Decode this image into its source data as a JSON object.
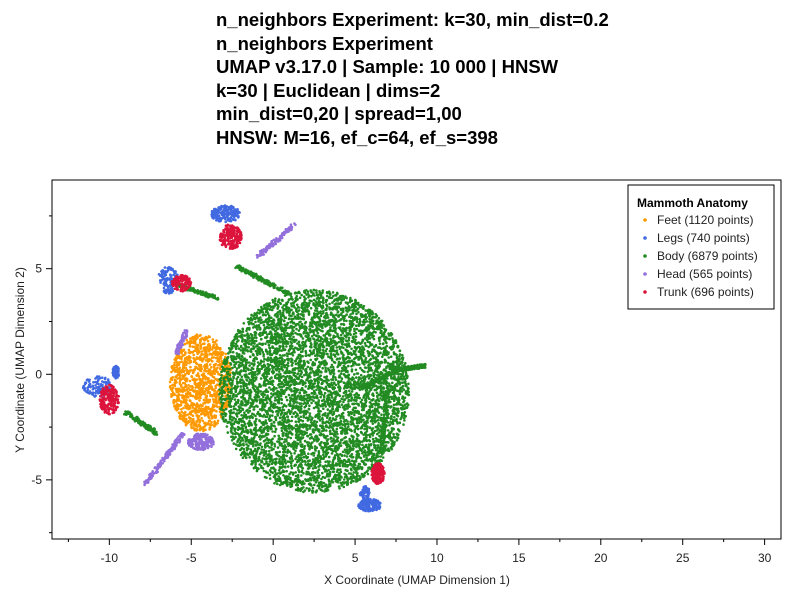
{
  "title_lines": [
    "n_neighbors Experiment: k=30, min_dist=0.2",
    "n_neighbors Experiment",
    "UMAP v3.17.0 | Sample: 10 000 | HNSW",
    "k=30 | Euclidean | dims=2",
    "min_dist=0,20 | spread=1,00",
    "HNSW: M=16, ef_c=64, ef_s=398"
  ],
  "chart_data": {
    "type": "scatter",
    "xlabel": "X Coordinate (UMAP Dimension 1)",
    "ylabel": "Y Coordinate (UMAP Dimension 2)",
    "xlim": [
      -13.5,
      31
    ],
    "ylim": [
      -7.8,
      9.2
    ],
    "x_ticks": [
      -10,
      -5,
      0,
      5,
      10,
      15,
      20,
      25,
      30
    ],
    "x_tick_labels": [
      "-10",
      "-5",
      "0",
      "5",
      "10",
      "15",
      "20",
      "25",
      "30"
    ],
    "y_ticks": [
      -5,
      0,
      5
    ],
    "y_tick_labels": [
      "-5",
      "0",
      "5"
    ],
    "grid": false,
    "legend": {
      "title": "Mammoth Anatomy",
      "placement": "top-right",
      "entries": [
        "Feet (1120 points)",
        "Legs (740 points)",
        "Body (6879 points)",
        "Head (565 points)",
        "Trunk (696 points)"
      ]
    },
    "colors": {
      "Feet": "#ff9900",
      "Legs": "#4169e1",
      "Body": "#228b22",
      "Head": "#9370db",
      "Trunk": "#dc143c"
    },
    "series": [
      {
        "name": "Feet",
        "count": 1120,
        "clusters": [
          {
            "shape": "ellipse",
            "cx": -4.4,
            "cy": -0.4,
            "rx": 1.9,
            "ry": 2.3,
            "n": 1120
          }
        ]
      },
      {
        "name": "Legs",
        "count": 740,
        "clusters": [
          {
            "shape": "blob",
            "cx": -10.7,
            "cy": -0.6,
            "rx": 0.9,
            "ry": 0.5,
            "n": 120
          },
          {
            "shape": "blob",
            "cx": -6.4,
            "cy": 4.6,
            "rx": 0.6,
            "ry": 0.5,
            "n": 100
          },
          {
            "shape": "blob",
            "cx": -6.4,
            "cy": 4.0,
            "rx": 0.3,
            "ry": 0.2,
            "n": 40
          },
          {
            "shape": "blob",
            "cx": -2.9,
            "cy": 7.6,
            "rx": 0.9,
            "ry": 0.4,
            "n": 160
          },
          {
            "shape": "blob",
            "cx": 5.9,
            "cy": -6.2,
            "rx": 0.7,
            "ry": 0.3,
            "n": 160
          },
          {
            "shape": "blob",
            "cx": 5.6,
            "cy": -5.6,
            "rx": 0.3,
            "ry": 0.3,
            "n": 60
          },
          {
            "shape": "blob",
            "cx": -9.6,
            "cy": 0.1,
            "rx": 0.2,
            "ry": 0.3,
            "n": 100
          }
        ]
      },
      {
        "name": "Body",
        "count": 6879,
        "clusters": [
          {
            "shape": "ellipse",
            "cx": 2.5,
            "cy": -0.8,
            "rx": 5.8,
            "ry": 4.8,
            "n": 6000
          },
          {
            "shape": "line",
            "x1": -2.2,
            "y1": 5.1,
            "x2": 1.0,
            "y2": 3.8,
            "n": 160
          },
          {
            "shape": "line",
            "x1": 7.5,
            "y1": 0.2,
            "x2": 9.3,
            "y2": 0.4,
            "n": 140
          },
          {
            "shape": "line",
            "x1": 7.0,
            "y1": -0.8,
            "x2": 6.6,
            "y2": -3.8,
            "n": 120
          },
          {
            "shape": "line",
            "x1": -6.0,
            "y1": 4.3,
            "x2": -3.4,
            "y2": 3.6,
            "n": 160
          },
          {
            "shape": "line",
            "x1": -9.0,
            "y1": -1.8,
            "x2": -7.1,
            "y2": -2.8,
            "n": 160
          },
          {
            "shape": "line",
            "x1": 5.5,
            "y1": -0.6,
            "x2": 7.6,
            "y2": 0.2,
            "n": 139
          }
        ]
      },
      {
        "name": "Head",
        "count": 565,
        "clusters": [
          {
            "shape": "line",
            "x1": -7.8,
            "y1": -5.2,
            "x2": -5.5,
            "y2": -2.8,
            "n": 160
          },
          {
            "shape": "line",
            "x1": -5.9,
            "y1": 1.0,
            "x2": -5.3,
            "y2": 2.0,
            "n": 90
          },
          {
            "shape": "blob",
            "cx": -4.4,
            "cy": -3.2,
            "rx": 0.8,
            "ry": 0.4,
            "n": 180
          },
          {
            "shape": "line",
            "x1": -0.9,
            "y1": 5.6,
            "x2": 1.3,
            "y2": 7.1,
            "n": 135
          }
        ]
      },
      {
        "name": "Trunk",
        "count": 696,
        "clusters": [
          {
            "shape": "blob",
            "cx": -2.6,
            "cy": 6.5,
            "rx": 0.7,
            "ry": 0.6,
            "n": 180
          },
          {
            "shape": "blob",
            "cx": -5.6,
            "cy": 4.3,
            "rx": 0.6,
            "ry": 0.4,
            "n": 130
          },
          {
            "shape": "blob",
            "cx": -10.0,
            "cy": -1.2,
            "rx": 0.6,
            "ry": 0.7,
            "n": 190
          },
          {
            "shape": "blob",
            "cx": 6.4,
            "cy": -4.7,
            "rx": 0.4,
            "ry": 0.5,
            "n": 196
          }
        ]
      }
    ]
  }
}
